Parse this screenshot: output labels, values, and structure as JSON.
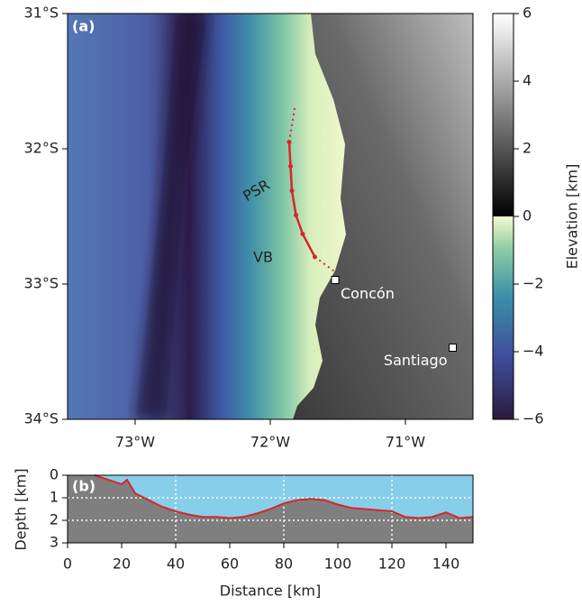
{
  "chart_data": [
    {
      "type": "map",
      "title": "(a)",
      "xlim": [
        -73.5,
        -70.5
      ],
      "ylim": [
        -34,
        -31
      ],
      "xticks": [
        {
          "value": -73,
          "label": "73°W"
        },
        {
          "value": -72,
          "label": "72°W"
        },
        {
          "value": -71,
          "label": "71°W"
        }
      ],
      "yticks": [
        {
          "value": -31,
          "label": "31°S"
        },
        {
          "value": -32,
          "label": "32°S"
        },
        {
          "value": -33,
          "label": "33°S"
        },
        {
          "value": -34,
          "label": "34°S"
        }
      ],
      "colorbar": {
        "label": "Elevation [km]",
        "lim": [
          -6,
          6
        ],
        "ticks": [
          {
            "value": -6,
            "label": "−6"
          },
          {
            "value": -4,
            "label": "−4"
          },
          {
            "value": -2,
            "label": "−2"
          },
          0,
          2,
          4,
          6
        ]
      },
      "annotations": [
        "PSR",
        "VB"
      ],
      "places": [
        {
          "name": "Concón",
          "lon": -71.52,
          "lat": -32.97
        },
        {
          "name": "Santiago",
          "lon": -70.65,
          "lat": -33.47
        }
      ],
      "fault": {
        "color": "#d62728",
        "lon": [
          -71.86,
          -71.85,
          -71.84,
          -71.81,
          -71.76,
          -71.67
        ],
        "lat": [
          -31.95,
          -32.13,
          -32.31,
          -32.49,
          -32.63,
          -32.8
        ]
      },
      "fault_extensions": [
        {
          "lon": [
            -71.86,
            -71.82
          ],
          "lat": [
            -31.95,
            -31.7
          ]
        },
        {
          "lon": [
            -71.67,
            -71.52
          ],
          "lat": [
            -32.8,
            -32.91
          ]
        }
      ]
    },
    {
      "type": "line",
      "title": "(b)",
      "xlabel": "Distance [km]",
      "ylabel": "Depth [km]",
      "xlim": [
        0,
        150
      ],
      "ylim": [
        3,
        0
      ],
      "xticks": [
        0,
        20,
        40,
        60,
        80,
        100,
        120,
        140
      ],
      "yticks": [
        0,
        1,
        2,
        3
      ],
      "grid_x": [
        40,
        80,
        120
      ],
      "grid_y": [
        1,
        2
      ],
      "series": [
        {
          "color": "#d62728",
          "x": [
            10,
            15,
            20,
            22,
            25,
            30,
            35,
            40,
            45,
            50,
            55,
            60,
            65,
            70,
            75,
            80,
            85,
            90,
            95,
            100,
            105,
            110,
            115,
            120,
            125,
            130,
            135,
            140,
            145,
            150
          ],
          "values": [
            0,
            0.2,
            0.4,
            0.2,
            0.8,
            1.1,
            1.4,
            1.6,
            1.75,
            1.85,
            1.85,
            1.9,
            1.85,
            1.7,
            1.5,
            1.25,
            1.1,
            1.05,
            1.1,
            1.3,
            1.45,
            1.5,
            1.55,
            1.6,
            1.85,
            1.9,
            1.85,
            1.65,
            1.9,
            1.85
          ]
        }
      ]
    }
  ]
}
